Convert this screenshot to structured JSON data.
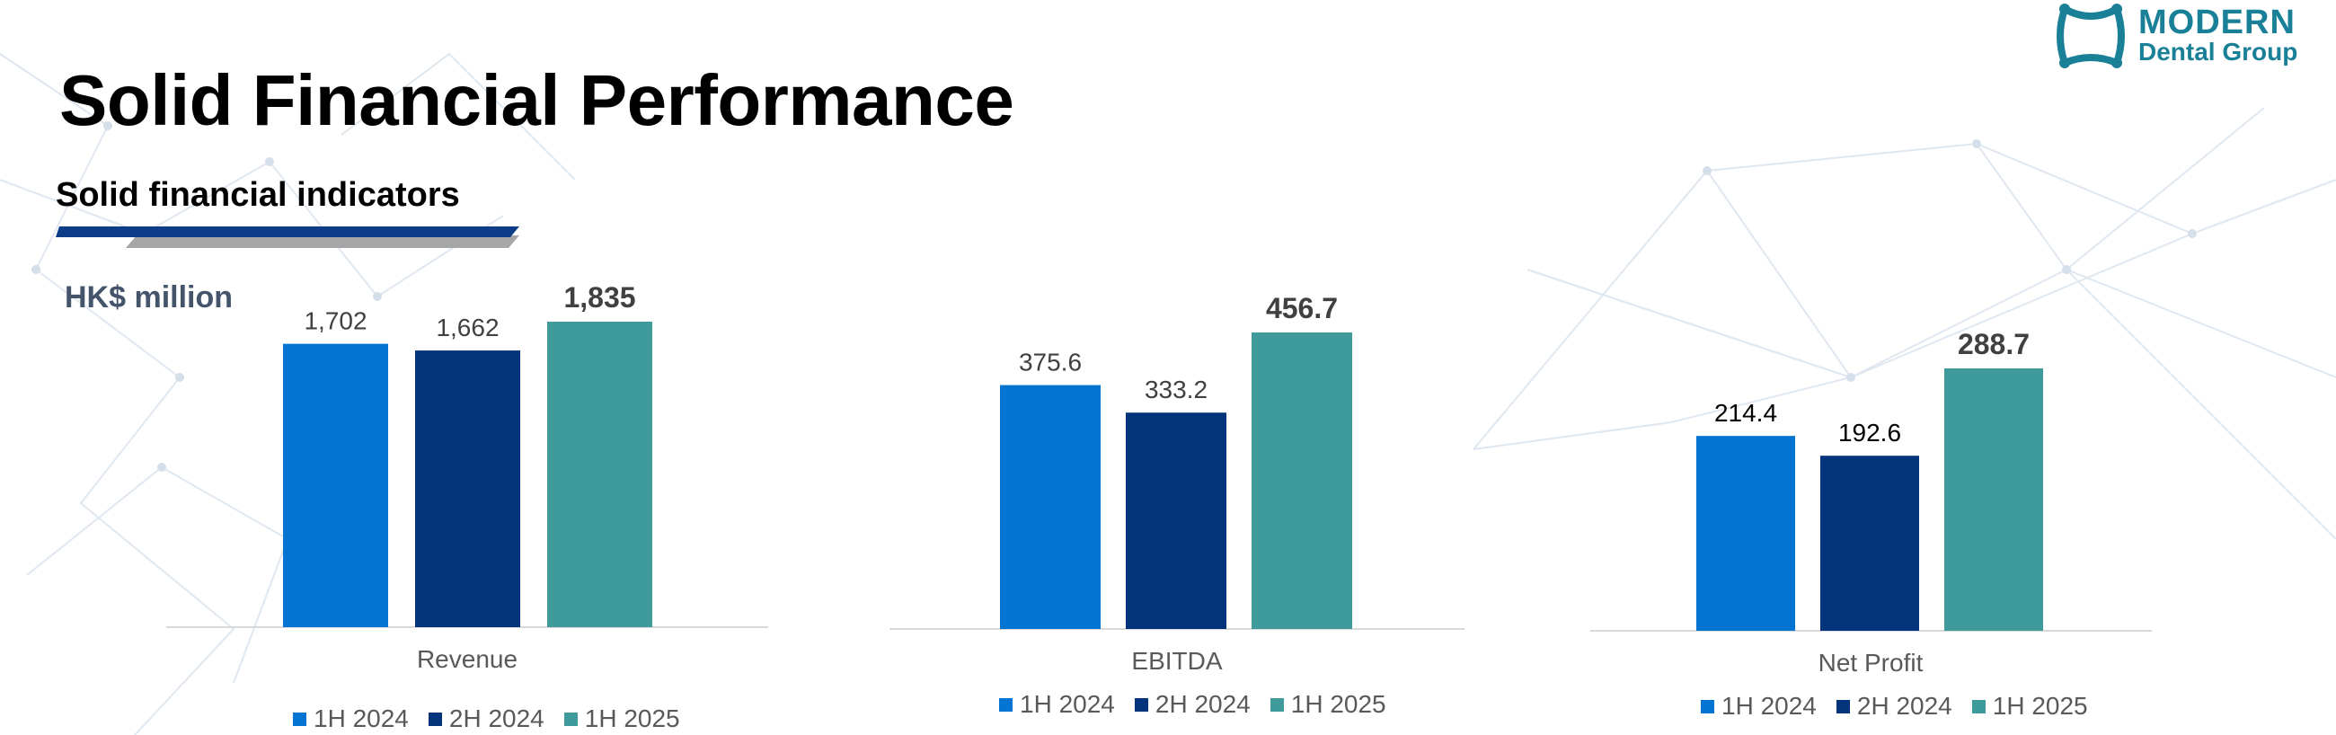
{
  "page": {
    "title": "Solid Financial Performance",
    "subtitle": "Solid financial indicators",
    "unit": "HK$ million"
  },
  "logo": {
    "line1": "MODERN",
    "line2": "Dental Group"
  },
  "colors": {
    "1H 2024": "#0474D2",
    "2H 2024": "#02337B",
    "1H 2025": "#3F9B9B",
    "accent_navy": "#0D3C88",
    "accent_gray": "#A6A6A6",
    "unit_text": "#44546A",
    "logo": "#1A8098"
  },
  "chart_data": [
    {
      "type": "bar",
      "title": "",
      "xlabel": "Revenue",
      "categories": [
        "Revenue"
      ],
      "series": [
        {
          "name": "1H 2024",
          "values": [
            1702
          ],
          "label": "1,702"
        },
        {
          "name": "2H 2024",
          "values": [
            1662
          ],
          "label": "1,662"
        },
        {
          "name": "1H 2025",
          "values": [
            1835
          ],
          "label": "1,835"
        }
      ],
      "ylim": [
        0,
        1835
      ],
      "legend": "bottom",
      "grid": false
    },
    {
      "type": "bar",
      "title": "",
      "xlabel": "EBITDA",
      "categories": [
        "EBITDA"
      ],
      "series": [
        {
          "name": "1H 2024",
          "values": [
            375.6
          ],
          "label": "375.6"
        },
        {
          "name": "2H 2024",
          "values": [
            333.2
          ],
          "label": "333.2"
        },
        {
          "name": "1H 2025",
          "values": [
            456.7
          ],
          "label": "456.7"
        }
      ],
      "ylim": [
        0,
        456.7
      ],
      "legend": "bottom",
      "grid": false
    },
    {
      "type": "bar",
      "title": "",
      "xlabel": "Net Profit",
      "categories": [
        "Net Profit"
      ],
      "series": [
        {
          "name": "1H 2024",
          "values": [
            214.4
          ],
          "label": "214.4"
        },
        {
          "name": "2H 2024",
          "values": [
            192.6
          ],
          "label": "192.6"
        },
        {
          "name": "1H 2025",
          "values": [
            288.7
          ],
          "label": "288.7"
        }
      ],
      "ylim": [
        0,
        288.7
      ],
      "legend": "bottom",
      "grid": false
    }
  ]
}
